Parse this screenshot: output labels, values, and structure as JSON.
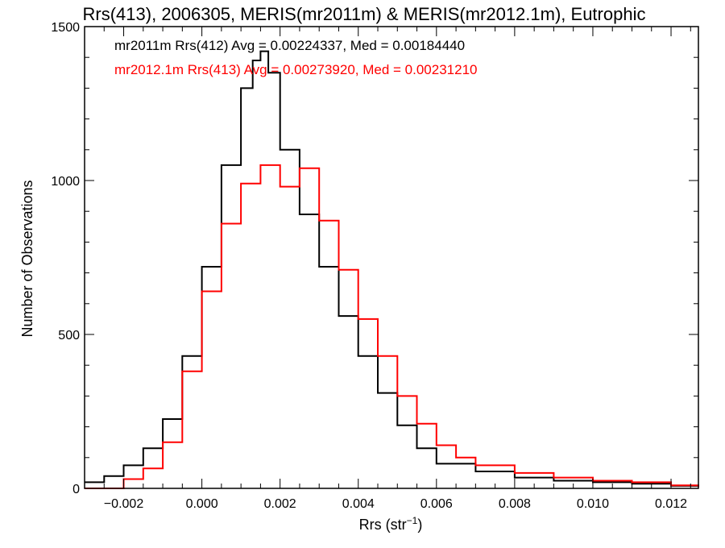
{
  "chart_data": {
    "type": "line",
    "title": "Rrs(413), 2006305, MERIS(mr2011m) & MERIS(mr2012.1m), Eutrophic",
    "xlabel_main": "Rrs (str",
    "xlabel_sup": "−1",
    "xlabel_close": ")",
    "ylabel": "Number of Observations",
    "xlim": [
      -0.003,
      0.0127
    ],
    "ylim": [
      0,
      1500
    ],
    "x_ticks": [
      -0.002,
      0.0,
      0.002,
      0.004,
      0.006,
      0.008,
      0.01,
      0.012
    ],
    "x_tick_labels": [
      "−0.002",
      "0.000",
      "0.002",
      "0.004",
      "0.006",
      "0.008",
      "0.010",
      "0.012"
    ],
    "y_ticks": [
      0,
      500,
      1000,
      1500
    ],
    "y_tick_labels": [
      "0",
      "500",
      "1000",
      "1500"
    ],
    "grid": false,
    "legend_position": "top-left",
    "series": [
      {
        "name": "mr2011m Rrs(412) Avg = 0.00224337, Med = 0.00184440",
        "color": "#000000",
        "step": true,
        "x": [
          -0.003,
          -0.0025,
          -0.002,
          -0.0015,
          -0.001,
          -0.0005,
          0.0,
          0.0005,
          0.001,
          0.0013,
          0.0015,
          0.0017,
          0.002,
          0.0025,
          0.003,
          0.0035,
          0.004,
          0.0045,
          0.005,
          0.0055,
          0.006,
          0.007,
          0.008,
          0.009,
          0.01,
          0.011,
          0.012,
          0.0127
        ],
        "y": [
          20,
          40,
          75,
          130,
          225,
          430,
          720,
          1050,
          1300,
          1390,
          1420,
          1350,
          1100,
          890,
          720,
          560,
          430,
          310,
          205,
          130,
          80,
          55,
          35,
          25,
          20,
          15,
          8,
          5
        ]
      },
      {
        "name": "mr2012.1m Rrs(413) Avg = 0.00273920, Med = 0.00231210",
        "color": "#ff0000",
        "step": true,
        "x": [
          -0.003,
          -0.002,
          -0.0015,
          -0.001,
          -0.0005,
          0.0,
          0.0005,
          0.001,
          0.0015,
          0.002,
          0.0025,
          0.003,
          0.0035,
          0.004,
          0.0045,
          0.005,
          0.0055,
          0.006,
          0.0065,
          0.007,
          0.008,
          0.009,
          0.01,
          0.011,
          0.012,
          0.0127
        ],
        "y": [
          0,
          30,
          65,
          150,
          380,
          640,
          860,
          990,
          1050,
          980,
          1040,
          870,
          710,
          550,
          430,
          300,
          210,
          140,
          100,
          75,
          50,
          35,
          25,
          20,
          10,
          5
        ]
      }
    ]
  }
}
